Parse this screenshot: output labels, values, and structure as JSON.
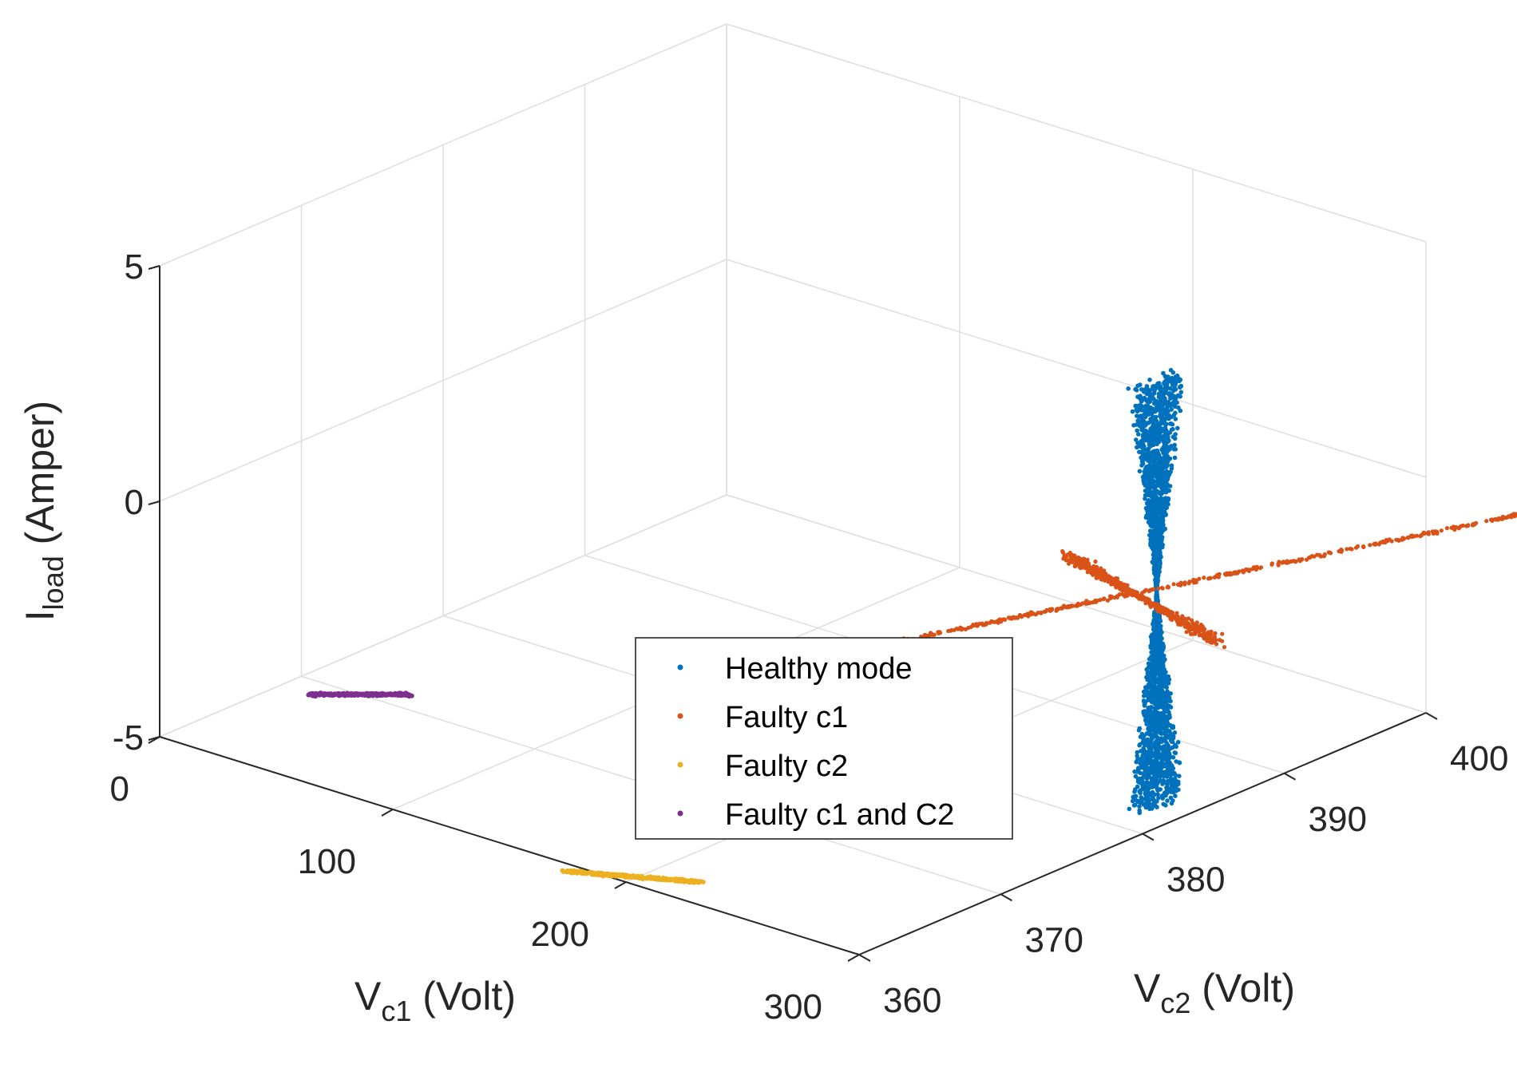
{
  "chart_data": {
    "type": "scatter3d",
    "axes": {
      "x": {
        "label_main": "V",
        "label_sub": "c1",
        "label_tail": " (Volt)",
        "ticks": [
          0,
          100,
          200,
          300
        ],
        "tick_labels": [
          "0",
          "100",
          "200",
          "300"
        ],
        "lim": [
          0,
          300
        ]
      },
      "y": {
        "label_main": "V",
        "label_sub": "c2",
        "label_tail": " (Volt)",
        "ticks": [
          360,
          370,
          380,
          390,
          400
        ],
        "tick_labels": [
          "360",
          "370",
          "380",
          "390",
          "400"
        ],
        "lim": [
          360,
          400
        ]
      },
      "z": {
        "label_main": "I",
        "label_sub": "load",
        "label_tail": " (Amper)",
        "ticks": [
          -5,
          0,
          5
        ],
        "tick_labels": [
          "-5",
          "0",
          "5"
        ],
        "lim": [
          -5,
          5
        ]
      }
    },
    "grid": true,
    "legend_position": "bottom-center",
    "series": [
      {
        "name": "Healthy mode",
        "color": "#0072BD",
        "description": "hourglass cloud centred near Vc1=300, Vc2=381, I=0",
        "center": {
          "x": 300,
          "y": 381,
          "z": 0
        },
        "z_range": [
          -4.5,
          4.5
        ],
        "spread_x_at_extremes": 4,
        "spread_y_at_extremes": 1.5
      },
      {
        "name": "Faulty c1",
        "color": "#D95319",
        "lines": [
          {
            "from": {
              "x": 247,
              "y": 362,
              "z": 0
            },
            "to": {
              "x": 347,
              "y": 400,
              "z": 0
            },
            "noise": 0.2
          },
          {
            "from": {
              "x": 390,
              "y": 360,
              "z": 4.85
            },
            "to": {
              "x": 210,
              "y": 400,
              "z": -4.85
            },
            "noise": 0.8
          }
        ]
      },
      {
        "name": "Faulty c2",
        "color": "#EDB120",
        "center": {
          "x": 200,
          "y": 360.5,
          "z": -4.95
        },
        "span_x": 40,
        "span_y": 3
      },
      {
        "name": "Faulty c1 and C2",
        "color": "#7E2F8E",
        "center": {
          "x": 25,
          "y": 370,
          "z": -5
        },
        "span_x": 25,
        "span_y": 3
      }
    ]
  }
}
